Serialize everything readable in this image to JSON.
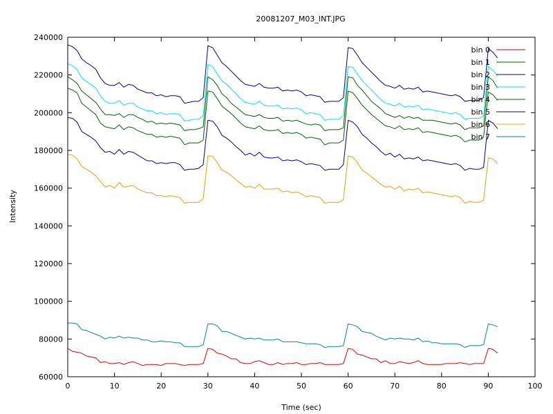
{
  "chart_data": {
    "type": "line",
    "title": "20081207_M03_INT.JPG",
    "xlabel": "Time (sec)",
    "ylabel": "Intensity",
    "xlim": [
      0,
      100
    ],
    "ylim": [
      60000,
      240000
    ],
    "xticks": [
      0,
      10,
      20,
      30,
      40,
      50,
      60,
      70,
      80,
      90,
      100
    ],
    "yticks": [
      60000,
      80000,
      100000,
      120000,
      140000,
      160000,
      180000,
      200000,
      220000,
      240000
    ],
    "grid": false,
    "legend_position": "top-right",
    "x": [
      0,
      1,
      2,
      3,
      4,
      5,
      6,
      7,
      8,
      9,
      10,
      11,
      12,
      13,
      14,
      15,
      16,
      17,
      18,
      19,
      20,
      21,
      22,
      23,
      24,
      25,
      26,
      27,
      28,
      29,
      30,
      31,
      32,
      33,
      34,
      35,
      36,
      37,
      38,
      39,
      40,
      41,
      42,
      43,
      44,
      45,
      46,
      47,
      48,
      49,
      50,
      51,
      52,
      53,
      54,
      55,
      56,
      57,
      58,
      59,
      60,
      61,
      62,
      63,
      64,
      65,
      66,
      67,
      68,
      69,
      70,
      71,
      72,
      73,
      74,
      75,
      76,
      77,
      78,
      79,
      80,
      81,
      82,
      83,
      84,
      85,
      86,
      87,
      88,
      89,
      90,
      91,
      92
    ],
    "series": [
      {
        "name": "bin 0",
        "color": "#dd0000",
        "values": [
          75000,
          73500,
          73000,
          72500,
          71000,
          70500,
          70000,
          67500,
          68000,
          67000,
          67000,
          67500,
          66500,
          67500,
          68000,
          67000,
          66000,
          66500,
          66500,
          66500,
          66000,
          67000,
          67000,
          67000,
          66500,
          66000,
          66500,
          66500,
          66500,
          67000,
          75000,
          74500,
          72500,
          72000,
          71000,
          69500,
          69500,
          67500,
          67000,
          67000,
          68000,
          68500,
          67500,
          66500,
          66500,
          67500,
          66500,
          67000,
          67000,
          67500,
          66500,
          66500,
          67000,
          67000,
          67500,
          66500,
          66500,
          66500,
          66500,
          67000,
          75000,
          74500,
          72000,
          71500,
          70500,
          69500,
          69500,
          67500,
          68500,
          67000,
          67000,
          68000,
          67500,
          67000,
          67500,
          68500,
          67000,
          66500,
          66500,
          66500,
          66500,
          67000,
          67000,
          67000,
          67500,
          67000,
          66500,
          67000,
          67000,
          67000,
          75000,
          74500,
          72500
        ]
      },
      {
        "name": "bin 1",
        "color": "#006400",
        "values": [
          219000,
          217500,
          215500,
          211500,
          209500,
          207500,
          205500,
          202000,
          199000,
          199000,
          198500,
          199500,
          197500,
          199000,
          199000,
          197500,
          196500,
          195000,
          195500,
          194000,
          194500,
          194000,
          194500,
          194000,
          193500,
          190500,
          191000,
          191000,
          191500,
          192500,
          219000,
          217500,
          214500,
          210000,
          208000,
          205000,
          203000,
          201000,
          199000,
          198500,
          198000,
          199000,
          197500,
          197000,
          197000,
          197500,
          195500,
          196000,
          195500,
          196000,
          195000,
          194000,
          193500,
          194000,
          193500,
          190500,
          191000,
          191000,
          191000,
          192000,
          219000,
          218500,
          214500,
          212000,
          209000,
          206000,
          204000,
          202000,
          199500,
          198500,
          197500,
          198500,
          197000,
          198000,
          197000,
          197500,
          196000,
          196000,
          196000,
          195500,
          195000,
          194500,
          194000,
          194500,
          193500,
          191000,
          192000,
          192000,
          192000,
          193000,
          219000,
          217000,
          213000
        ]
      },
      {
        "name": "bin 2",
        "color": "#00008b",
        "values": [
          236000,
          235000,
          233000,
          228500,
          226500,
          225000,
          223000,
          218500,
          215500,
          214500,
          214500,
          216000,
          213500,
          215000,
          214500,
          212500,
          211500,
          210500,
          210500,
          209000,
          209500,
          208500,
          209000,
          209000,
          208500,
          205000,
          205500,
          206000,
          206000,
          208000,
          235500,
          234500,
          230500,
          226500,
          224500,
          222000,
          219500,
          217000,
          215000,
          214500,
          214000,
          215500,
          213500,
          213000,
          213000,
          213500,
          211500,
          212000,
          211500,
          212000,
          211000,
          209000,
          209500,
          209000,
          208500,
          205500,
          206000,
          206000,
          206000,
          208000,
          234500,
          234000,
          230500,
          226500,
          224000,
          221500,
          219000,
          216500,
          214500,
          214000,
          213000,
          214500,
          212500,
          213000,
          212500,
          213500,
          211000,
          211500,
          211000,
          210500,
          210000,
          209500,
          209000,
          209500,
          208500,
          206000,
          206500,
          206500,
          206500,
          208000,
          234000,
          232000,
          229000
        ]
      },
      {
        "name": "bin 3",
        "color": "#00e5ee",
        "values": [
          226000,
          225000,
          223000,
          218500,
          216500,
          215000,
          213000,
          209000,
          206000,
          205000,
          205000,
          206500,
          204000,
          205000,
          205000,
          203000,
          202000,
          201000,
          201000,
          199500,
          200000,
          199000,
          199500,
          199500,
          199000,
          195500,
          196000,
          196500,
          196500,
          198500,
          225500,
          224500,
          220500,
          217000,
          215000,
          212500,
          210000,
          207500,
          205500,
          205000,
          204500,
          206000,
          204000,
          203500,
          203500,
          204000,
          202000,
          202500,
          202000,
          202500,
          201500,
          199500,
          200000,
          199500,
          199000,
          196000,
          196500,
          196500,
          196500,
          198500,
          224500,
          224000,
          220500,
          217000,
          214500,
          212000,
          209500,
          207000,
          205000,
          204500,
          203500,
          205000,
          203000,
          203500,
          203000,
          204000,
          201500,
          202000,
          201500,
          201000,
          200500,
          200000,
          199500,
          200000,
          199000,
          196500,
          197000,
          197000,
          197000,
          198500,
          224500,
          222500,
          219500
        ]
      },
      {
        "name": "bin 4",
        "color": "#006400",
        "values": [
          213000,
          212000,
          210500,
          205000,
          203000,
          201000,
          199000,
          194500,
          192500,
          192000,
          191500,
          193500,
          191000,
          192500,
          192000,
          190500,
          189500,
          188500,
          188500,
          187000,
          187500,
          187000,
          187500,
          187000,
          186500,
          183000,
          184000,
          184000,
          184000,
          185500,
          211500,
          211000,
          207500,
          203500,
          201500,
          199500,
          197000,
          194500,
          192500,
          192000,
          191500,
          193000,
          191000,
          190500,
          190500,
          191000,
          189000,
          189500,
          189000,
          189500,
          188500,
          186500,
          187000,
          186500,
          186000,
          183000,
          184000,
          184000,
          184000,
          185500,
          211500,
          210500,
          207500,
          204000,
          201500,
          199000,
          197000,
          195000,
          193000,
          192500,
          191500,
          193000,
          191000,
          191500,
          191000,
          192000,
          189500,
          190000,
          189500,
          189000,
          188500,
          188000,
          187500,
          188000,
          187000,
          184500,
          185500,
          185500,
          185500,
          187000,
          211000,
          209500,
          206500
        ]
      },
      {
        "name": "bin 5",
        "color": "#00008b",
        "values": [
          197500,
          197000,
          195000,
          190000,
          188500,
          187000,
          185000,
          181500,
          179000,
          179500,
          178000,
          180500,
          178000,
          179500,
          179000,
          177500,
          176000,
          174500,
          174500,
          173000,
          173500,
          173000,
          173500,
          173500,
          172500,
          169500,
          170000,
          170000,
          170500,
          172500,
          196000,
          195500,
          192500,
          188000,
          186500,
          184500,
          182000,
          180000,
          177500,
          178500,
          177000,
          179000,
          176500,
          176000,
          176000,
          176500,
          174500,
          175000,
          174500,
          175000,
          174000,
          172500,
          173000,
          172500,
          172000,
          169500,
          170000,
          170000,
          170000,
          172500,
          196000,
          195000,
          192500,
          188500,
          186500,
          184000,
          182000,
          179500,
          177500,
          178500,
          176500,
          178000,
          175500,
          176000,
          175500,
          176500,
          174500,
          175000,
          174500,
          174000,
          173500,
          173000,
          172500,
          173000,
          172000,
          169500,
          170500,
          170000,
          170000,
          171000,
          196000,
          194500,
          191500
        ]
      },
      {
        "name": "bin 6",
        "color": "#e8a000",
        "values": [
          178000,
          177500,
          175500,
          171500,
          170000,
          168500,
          166500,
          163500,
          160500,
          161500,
          160000,
          163000,
          160500,
          161000,
          161500,
          159500,
          158500,
          157500,
          157500,
          156000,
          156000,
          155500,
          156000,
          155500,
          155000,
          152000,
          152500,
          152500,
          152500,
          154500,
          177000,
          177000,
          173500,
          169500,
          168500,
          166500,
          164500,
          162500,
          160500,
          161000,
          160000,
          162000,
          159500,
          159500,
          159500,
          160000,
          158000,
          158500,
          157500,
          158000,
          157000,
          155500,
          156000,
          155500,
          155000,
          152000,
          152500,
          152500,
          152500,
          154000,
          177000,
          176500,
          173500,
          169500,
          168000,
          166000,
          164000,
          162000,
          160500,
          161000,
          159500,
          161000,
          158500,
          159500,
          159000,
          160000,
          157500,
          158000,
          157500,
          157000,
          156500,
          156000,
          155500,
          156000,
          155000,
          152000,
          153000,
          152500,
          152500,
          153500,
          176000,
          175500,
          173000
        ]
      },
      {
        "name": "bin 7",
        "color": "#008b8b",
        "values": [
          88500,
          88500,
          88000,
          85000,
          84500,
          83500,
          82500,
          81500,
          80000,
          81000,
          80500,
          81500,
          80500,
          81000,
          80500,
          80500,
          79500,
          79500,
          78500,
          78500,
          79000,
          78500,
          78500,
          78000,
          78000,
          76000,
          76000,
          76000,
          76000,
          77000,
          88000,
          88000,
          87000,
          84000,
          84000,
          83000,
          82000,
          81000,
          80000,
          80500,
          80000,
          80500,
          79500,
          79500,
          79500,
          80000,
          78500,
          78500,
          78500,
          78500,
          78000,
          77500,
          77500,
          77500,
          77000,
          75500,
          76000,
          76000,
          76000,
          76500,
          88000,
          87500,
          86500,
          84000,
          83500,
          83000,
          81500,
          80500,
          79500,
          80500,
          80000,
          80500,
          80000,
          80000,
          79500,
          80500,
          78500,
          79000,
          78000,
          78000,
          77500,
          77500,
          77500,
          77500,
          77000,
          75500,
          76500,
          76500,
          76500,
          77000,
          88000,
          87500,
          86500
        ]
      }
    ]
  }
}
